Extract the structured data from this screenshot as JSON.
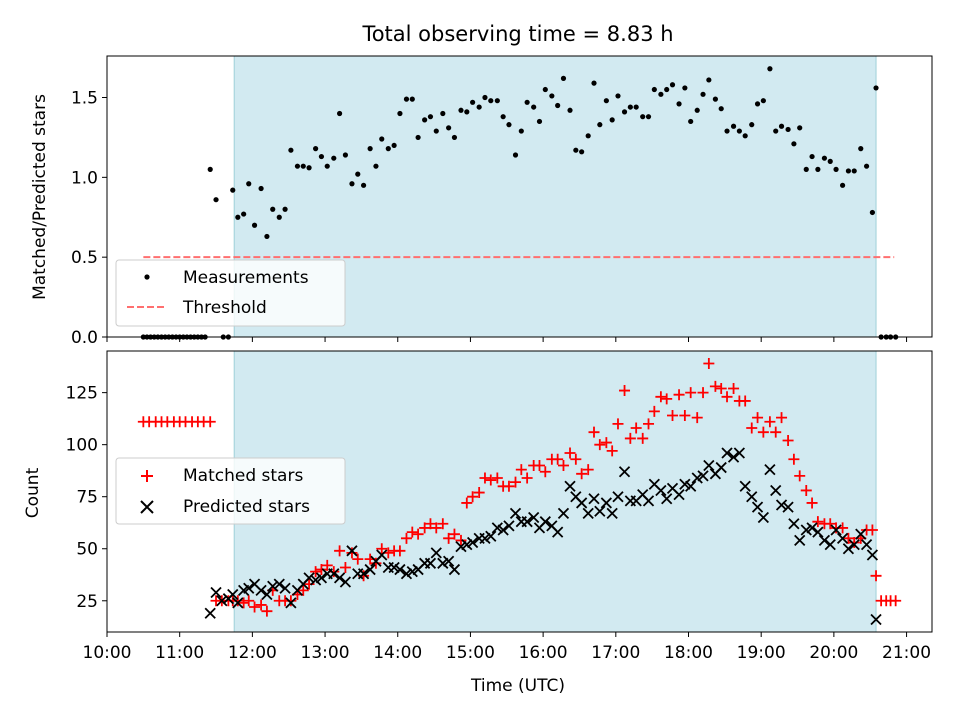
{
  "figure_title": "Total observing time = 8.83 h",
  "colors": {
    "shade": "#add8e6",
    "measurement": "#000000",
    "threshold": "#ff6f6f",
    "matched": "#ff0000",
    "predicted": "#000000"
  },
  "chart_data": [
    {
      "type": "scatter",
      "ylabel": "Matched/Predicted stars",
      "xlim": [
        10.0,
        21.35
      ],
      "ylim": [
        0.0,
        1.76
      ],
      "yticks": [
        0.0,
        0.5,
        1.0,
        1.5
      ],
      "ytick_labels": [
        "0.0",
        "0.5",
        "1.0",
        "1.5"
      ],
      "shaded_span": [
        11.75,
        20.58
      ],
      "legend": {
        "location": "lower-left",
        "entries": [
          "Measurements",
          "Threshold"
        ]
      },
      "threshold": {
        "name": "Threshold",
        "value": 0.5,
        "x_range": [
          10.5,
          20.83
        ],
        "style": "dashed"
      },
      "series": [
        {
          "name": "Measurements",
          "x": [
            10.5,
            10.55,
            10.6,
            10.65,
            10.7,
            10.75,
            10.8,
            10.85,
            10.9,
            10.95,
            11.0,
            11.05,
            11.1,
            11.15,
            11.2,
            11.25,
            11.3,
            11.35,
            11.42,
            11.5,
            11.6,
            11.67,
            11.73,
            11.8,
            11.88,
            11.95,
            12.03,
            12.12,
            12.2,
            12.28,
            12.37,
            12.45,
            12.53,
            12.62,
            12.7,
            12.78,
            12.87,
            12.95,
            13.03,
            13.12,
            13.2,
            13.28,
            13.37,
            13.45,
            13.53,
            13.62,
            13.7,
            13.78,
            13.87,
            13.95,
            14.03,
            14.12,
            14.2,
            14.28,
            14.37,
            14.45,
            14.53,
            14.62,
            14.7,
            14.78,
            14.87,
            14.95,
            15.03,
            15.12,
            15.2,
            15.28,
            15.37,
            15.45,
            15.53,
            15.62,
            15.7,
            15.78,
            15.87,
            15.95,
            16.03,
            16.12,
            16.2,
            16.28,
            16.37,
            16.45,
            16.53,
            16.62,
            16.7,
            16.78,
            16.87,
            16.95,
            17.03,
            17.12,
            17.2,
            17.28,
            17.37,
            17.45,
            17.53,
            17.62,
            17.7,
            17.78,
            17.87,
            17.95,
            18.03,
            18.12,
            18.2,
            18.28,
            18.37,
            18.45,
            18.53,
            18.62,
            18.7,
            18.78,
            18.87,
            18.95,
            19.03,
            19.12,
            19.2,
            19.28,
            19.37,
            19.45,
            19.53,
            19.62,
            19.7,
            19.78,
            19.87,
            19.95,
            20.03,
            20.12,
            20.2,
            20.28,
            20.37,
            20.45,
            20.53,
            20.58,
            20.65,
            20.72,
            20.78,
            20.85
          ],
          "y": [
            0.0,
            0.0,
            0.0,
            0.0,
            0.0,
            0.0,
            0.0,
            0.0,
            0.0,
            0.0,
            0.0,
            0.0,
            0.0,
            0.0,
            0.0,
            0.0,
            0.0,
            0.0,
            1.05,
            0.86,
            0.0,
            0.0,
            0.92,
            0.75,
            0.77,
            0.96,
            0.7,
            0.93,
            0.63,
            0.8,
            0.75,
            0.8,
            1.17,
            1.07,
            1.07,
            1.06,
            1.18,
            1.13,
            1.07,
            1.12,
            1.4,
            1.14,
            0.96,
            1.02,
            0.95,
            1.18,
            1.07,
            1.24,
            1.18,
            1.2,
            1.4,
            1.49,
            1.49,
            1.25,
            1.36,
            1.38,
            1.29,
            1.4,
            1.31,
            1.25,
            1.42,
            1.41,
            1.47,
            1.44,
            1.5,
            1.48,
            1.48,
            1.38,
            1.33,
            1.14,
            1.29,
            1.47,
            1.44,
            1.35,
            1.55,
            1.51,
            1.45,
            1.62,
            1.42,
            1.17,
            1.16,
            1.26,
            1.59,
            1.33,
            1.48,
            1.36,
            1.51,
            1.41,
            1.44,
            1.44,
            1.38,
            1.38,
            1.55,
            1.52,
            1.55,
            1.58,
            1.46,
            1.56,
            1.35,
            1.42,
            1.52,
            1.61,
            1.49,
            1.43,
            1.29,
            1.32,
            1.29,
            1.26,
            1.33,
            1.46,
            1.48,
            1.68,
            1.29,
            1.32,
            1.3,
            1.21,
            1.31,
            1.05,
            1.13,
            1.05,
            1.12,
            1.1,
            1.05,
            0.95,
            1.04,
            1.04,
            1.18,
            1.07,
            0.78,
            1.56,
            0.0,
            0.0,
            0.0,
            0.0
          ]
        }
      ]
    },
    {
      "type": "scatter",
      "xlabel": "Time (UTC)",
      "ylabel": "Count",
      "xlim": [
        10.0,
        21.35
      ],
      "ylim": [
        10,
        145
      ],
      "xticks": [
        10,
        11,
        12,
        13,
        14,
        15,
        16,
        17,
        18,
        19,
        20,
        21
      ],
      "xtick_labels": [
        "10:00",
        "11:00",
        "12:00",
        "13:00",
        "14:00",
        "15:00",
        "16:00",
        "17:00",
        "18:00",
        "19:00",
        "20:00",
        "21:00"
      ],
      "yticks": [
        25,
        50,
        75,
        100,
        125
      ],
      "ytick_labels": [
        "25",
        "50",
        "75",
        "100",
        "125"
      ],
      "shaded_span": [
        11.75,
        20.58
      ],
      "legend": {
        "location": "center-left",
        "entries": [
          "Matched stars",
          "Predicted stars"
        ]
      },
      "series": [
        {
          "name": "Matched stars",
          "marker": "plus",
          "x": [
            10.5,
            10.58,
            10.67,
            10.75,
            10.83,
            10.92,
            11.0,
            11.08,
            11.17,
            11.25,
            11.33,
            11.42,
            11.5,
            11.58,
            11.67,
            11.73,
            11.8,
            11.88,
            11.95,
            12.03,
            12.12,
            12.2,
            12.28,
            12.37,
            12.45,
            12.53,
            12.62,
            12.7,
            12.78,
            12.87,
            12.95,
            13.03,
            13.12,
            13.2,
            13.28,
            13.37,
            13.45,
            13.53,
            13.62,
            13.7,
            13.78,
            13.87,
            13.95,
            14.03,
            14.12,
            14.2,
            14.28,
            14.37,
            14.45,
            14.53,
            14.62,
            14.7,
            14.78,
            14.87,
            14.95,
            15.03,
            15.12,
            15.2,
            15.28,
            15.37,
            15.45,
            15.53,
            15.62,
            15.7,
            15.78,
            15.87,
            15.95,
            16.03,
            16.12,
            16.2,
            16.28,
            16.37,
            16.45,
            16.53,
            16.62,
            16.7,
            16.78,
            16.87,
            16.95,
            17.03,
            17.12,
            17.2,
            17.28,
            17.37,
            17.45,
            17.53,
            17.62,
            17.7,
            17.78,
            17.87,
            17.95,
            18.03,
            18.12,
            18.2,
            18.28,
            18.37,
            18.45,
            18.53,
            18.62,
            18.7,
            18.78,
            18.87,
            18.95,
            19.03,
            19.12,
            19.2,
            19.28,
            19.37,
            19.45,
            19.53,
            19.62,
            19.7,
            19.78,
            19.87,
            19.95,
            20.03,
            20.12,
            20.2,
            20.28,
            20.37,
            20.45,
            20.53,
            20.58,
            20.65,
            20.72,
            20.78,
            20.85
          ],
          "y": [
            111,
            111,
            111,
            111,
            111,
            111,
            111,
            111,
            111,
            111,
            111,
            111,
            25,
            25,
            25,
            25,
            25,
            24,
            25,
            22,
            23,
            20,
            30,
            25,
            25,
            25,
            28,
            30,
            33,
            39,
            40,
            42,
            39,
            49,
            41,
            48,
            45,
            37,
            45,
            43,
            50,
            48,
            49,
            49,
            55,
            58,
            57,
            60,
            62,
            60,
            62,
            55,
            57,
            54,
            72,
            75,
            77,
            84,
            83,
            84,
            80,
            80,
            82,
            88,
            84,
            90,
            90,
            87,
            93,
            93,
            90,
            96,
            93,
            86,
            88,
            106,
            100,
            101,
            97,
            110,
            126,
            103,
            108,
            103,
            110,
            116,
            123,
            122,
            114,
            124,
            114,
            125,
            113,
            125,
            139,
            128,
            127,
            123,
            127,
            121,
            121,
            108,
            113,
            106,
            111,
            106,
            113,
            102,
            93,
            85,
            78,
            72,
            63,
            62,
            62,
            60,
            60,
            55,
            53,
            55,
            59,
            59,
            37,
            25,
            25,
            25,
            25
          ]
        },
        {
          "name": "Predicted stars",
          "marker": "x",
          "x": [
            11.42,
            11.5,
            11.58,
            11.67,
            11.73,
            11.8,
            11.88,
            11.95,
            12.03,
            12.12,
            12.2,
            12.28,
            12.37,
            12.45,
            12.53,
            12.62,
            12.7,
            12.78,
            12.87,
            12.95,
            13.03,
            13.12,
            13.2,
            13.28,
            13.37,
            13.45,
            13.53,
            13.62,
            13.7,
            13.78,
            13.87,
            13.95,
            14.03,
            14.12,
            14.2,
            14.28,
            14.37,
            14.45,
            14.53,
            14.62,
            14.7,
            14.78,
            14.87,
            14.95,
            15.03,
            15.12,
            15.2,
            15.28,
            15.37,
            15.45,
            15.53,
            15.62,
            15.7,
            15.78,
            15.87,
            15.95,
            16.03,
            16.12,
            16.2,
            16.28,
            16.37,
            16.45,
            16.53,
            16.62,
            16.7,
            16.78,
            16.87,
            16.95,
            17.03,
            17.12,
            17.2,
            17.28,
            17.37,
            17.45,
            17.53,
            17.62,
            17.7,
            17.78,
            17.87,
            17.95,
            18.03,
            18.12,
            18.2,
            18.28,
            18.37,
            18.45,
            18.53,
            18.62,
            18.7,
            18.78,
            18.87,
            18.95,
            19.03,
            19.12,
            19.2,
            19.28,
            19.37,
            19.45,
            19.53,
            19.62,
            19.7,
            19.78,
            19.87,
            19.95,
            20.03,
            20.12,
            20.2,
            20.28,
            20.37,
            20.45,
            20.53,
            20.58
          ],
          "y": [
            19,
            29,
            25,
            26,
            28,
            24,
            30,
            31,
            33,
            30,
            28,
            32,
            33,
            31,
            24,
            30,
            33,
            36,
            35,
            36,
            38,
            38,
            36,
            34,
            49,
            38,
            38,
            40,
            44,
            47,
            41,
            41,
            40,
            38,
            39,
            40,
            43,
            43,
            48,
            43,
            44,
            40,
            51,
            52,
            53,
            55,
            55,
            56,
            60,
            59,
            61,
            67,
            63,
            63,
            65,
            60,
            63,
            61,
            58,
            67,
            80,
            75,
            72,
            67,
            74,
            68,
            72,
            67,
            75,
            87,
            73,
            73,
            76,
            73,
            81,
            78,
            74,
            79,
            76,
            81,
            80,
            84,
            85,
            90,
            86,
            89,
            96,
            94,
            96,
            80,
            75,
            70,
            65,
            88,
            78,
            71,
            70,
            62,
            54,
            59,
            60,
            58,
            54,
            52,
            59,
            55,
            50,
            52,
            57,
            52,
            47,
            16
          ]
        }
      ]
    }
  ]
}
